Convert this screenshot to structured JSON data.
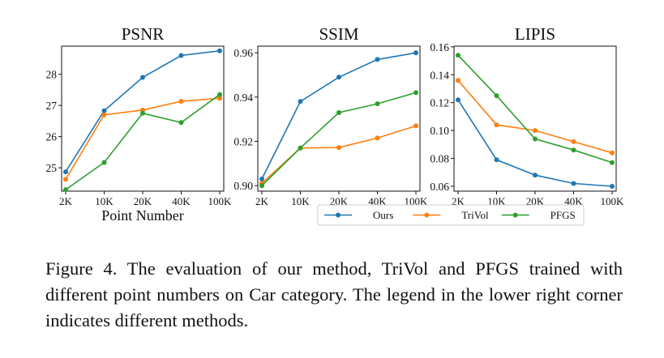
{
  "caption": "Figure 4. The evaluation of our method, TriVol and PFGS trained with different point numbers on Car category. The legend in the lower right corner indicates different methods.",
  "colors": {
    "Ours": "#1f77b4",
    "TriVol": "#ff7f0e",
    "PFGS": "#2ca02c"
  },
  "legend": {
    "placement": "lower-right",
    "entries": [
      "Ours",
      "TriVol",
      "PFGS"
    ]
  },
  "shared_xlabel": "Point Number",
  "chart_data": [
    {
      "type": "line",
      "title": "PSNR",
      "xlabel": "Point Number",
      "ylabel": "",
      "categories": [
        "2K",
        "10K",
        "20K",
        "40K",
        "100K"
      ],
      "ylim": [
        24.25,
        28.9
      ],
      "yticks": [
        25,
        26,
        27,
        28
      ],
      "ytick_labels": [
        "25",
        "26",
        "27",
        "28"
      ],
      "grid": false,
      "series": [
        {
          "name": "Ours",
          "values": [
            24.87,
            26.83,
            27.9,
            28.6,
            28.75
          ]
        },
        {
          "name": "TriVol",
          "values": [
            24.63,
            26.7,
            26.85,
            27.13,
            27.23
          ]
        },
        {
          "name": "PFGS",
          "values": [
            24.3,
            25.17,
            26.75,
            26.45,
            27.35
          ]
        }
      ]
    },
    {
      "type": "line",
      "title": "SSIM",
      "xlabel": "",
      "ylabel": "",
      "categories": [
        "2K",
        "10K",
        "20K",
        "40K",
        "100K"
      ],
      "ylim": [
        0.8975,
        0.963
      ],
      "yticks": [
        0.9,
        0.92,
        0.94,
        0.96
      ],
      "ytick_labels": [
        "0.90",
        "0.92",
        "0.94",
        "0.96"
      ],
      "grid": false,
      "series": [
        {
          "name": "Ours",
          "values": [
            0.903,
            0.938,
            0.949,
            0.957,
            0.96
          ]
        },
        {
          "name": "TriVol",
          "values": [
            0.901,
            0.917,
            0.9172,
            0.9215,
            0.927
          ]
        },
        {
          "name": "PFGS",
          "values": [
            0.9,
            0.917,
            0.933,
            0.937,
            0.942
          ]
        }
      ]
    },
    {
      "type": "line",
      "title": "LIPIS",
      "xlabel": "",
      "ylabel": "",
      "categories": [
        "2K",
        "10K",
        "20K",
        "40K",
        "100K"
      ],
      "ylim": [
        0.0565,
        0.1605
      ],
      "yticks": [
        0.06,
        0.08,
        0.1,
        0.12,
        0.14,
        0.16
      ],
      "ytick_labels": [
        "0.06",
        "0.08",
        "0.10",
        "0.12",
        "0.14",
        "0.16"
      ],
      "grid": false,
      "series": [
        {
          "name": "Ours",
          "values": [
            0.122,
            0.079,
            0.068,
            0.062,
            0.06
          ]
        },
        {
          "name": "TriVol",
          "values": [
            0.136,
            0.104,
            0.1,
            0.092,
            0.084
          ]
        },
        {
          "name": "PFGS",
          "values": [
            0.154,
            0.125,
            0.094,
            0.086,
            0.077
          ]
        }
      ]
    }
  ]
}
